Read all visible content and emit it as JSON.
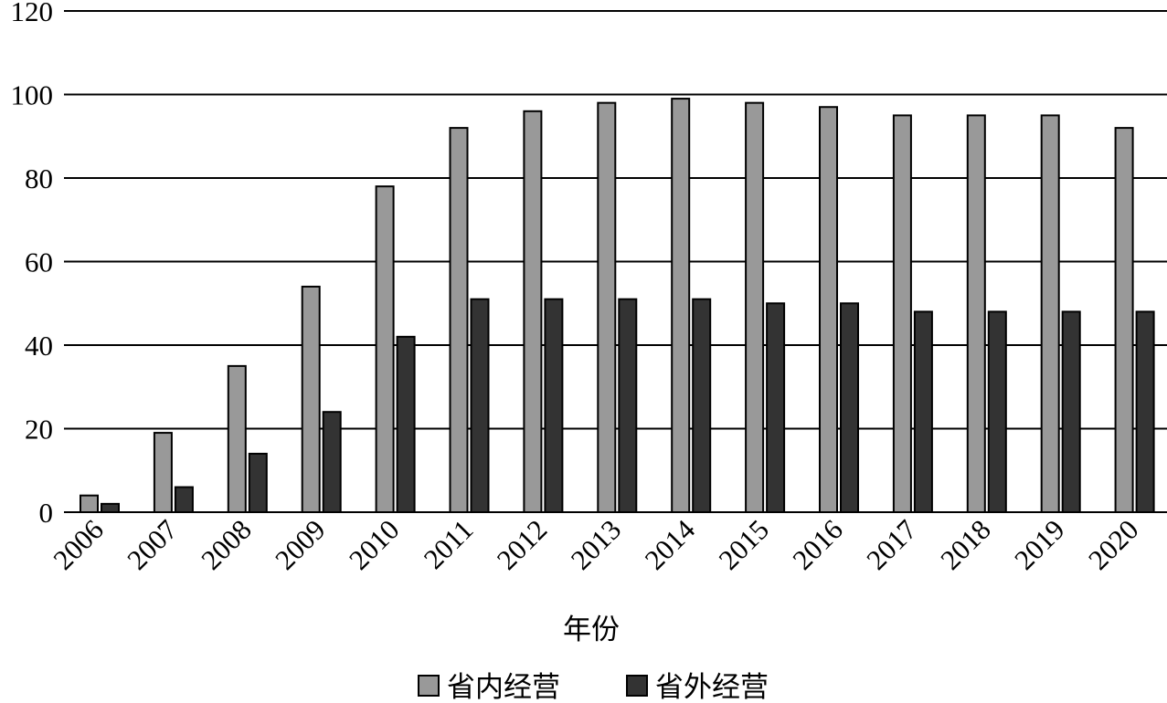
{
  "chart_data": {
    "type": "bar",
    "title": "",
    "xlabel": "年份",
    "ylabel": "",
    "ylim": [
      0,
      120
    ],
    "yticks": [
      0,
      20,
      40,
      60,
      80,
      100,
      120
    ],
    "grid": true,
    "legend_position": "bottom",
    "categories": [
      "2006",
      "2007",
      "2008",
      "2009",
      "2010",
      "2011",
      "2012",
      "2013",
      "2014",
      "2015",
      "2016",
      "2017",
      "2018",
      "2019",
      "2020"
    ],
    "series": [
      {
        "name": "省内经营",
        "color": "#999999",
        "values": [
          4,
          19,
          35,
          54,
          78,
          92,
          96,
          98,
          99,
          98,
          97,
          95,
          95,
          95,
          92
        ]
      },
      {
        "name": "省外经营",
        "color": "#333333",
        "values": [
          2,
          6,
          14,
          24,
          42,
          51,
          51,
          51,
          51,
          50,
          50,
          48,
          48,
          48,
          48
        ]
      }
    ]
  }
}
